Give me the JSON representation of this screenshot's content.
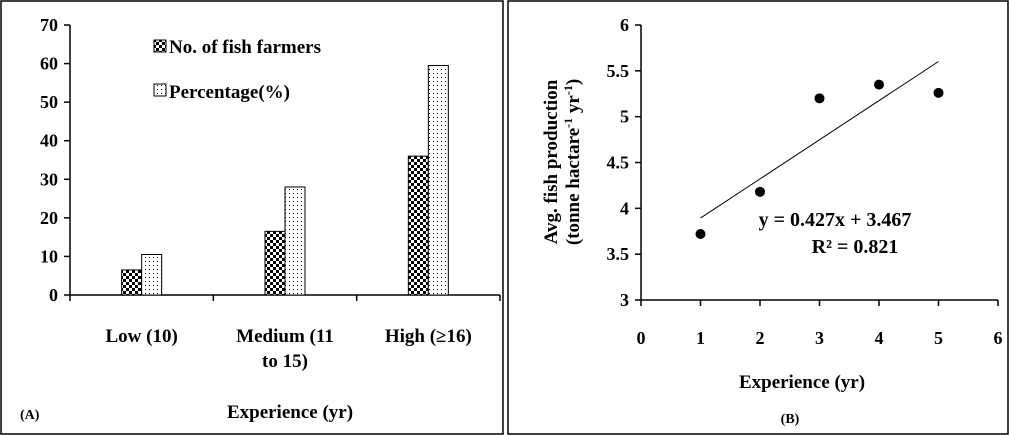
{
  "chart_data": [
    {
      "panel_label": "(A)",
      "type": "bar",
      "categories": [
        "Low (10)",
        "Medium (11 to 15)",
        "High (≥16)"
      ],
      "category_lines": [
        [
          "Low (10)"
        ],
        [
          "Medium (11",
          "to 15)"
        ],
        [
          "High (≥16)"
        ]
      ],
      "series": [
        {
          "name": "No. of fish farmers",
          "values": [
            6.5,
            16.5,
            36
          ]
        },
        {
          "name": "Percentage(%)",
          "values": [
            10.5,
            28,
            59.5
          ]
        }
      ],
      "xlabel": "Experience (yr)",
      "ylabel": "",
      "ylim": [
        0,
        70
      ],
      "yticks": [
        0,
        10,
        20,
        30,
        40,
        50,
        60,
        70
      ],
      "grid": false,
      "legend": "top-center"
    },
    {
      "panel_label": "(B)",
      "type": "scatter",
      "x": [
        1,
        2,
        3,
        4,
        5
      ],
      "y": [
        3.72,
        4.18,
        5.2,
        5.35,
        5.26
      ],
      "trendline": {
        "slope": 0.427,
        "intercept": 3.467,
        "x_range": [
          1,
          5
        ]
      },
      "equation": "y = 0.427x + 3.467",
      "r_squared": "R² = 0.821",
      "xlabel": "Experience (yr)",
      "ylabel_line1": "Avg. fish production",
      "ylabel_line2_parts": [
        "(tonne hactare",
        "-1",
        " yr",
        "-1",
        ")"
      ],
      "xlim": [
        0,
        6
      ],
      "ylim": [
        3,
        6
      ],
      "xticks": [
        0,
        1,
        2,
        3,
        4,
        5,
        6
      ],
      "xtick_labels": [
        "0",
        "1",
        "2",
        "3",
        "4",
        "5",
        "6"
      ],
      "yticks": [
        3,
        3.5,
        4,
        4.5,
        5,
        5.5,
        6
      ],
      "ytick_labels": [
        "3",
        "3.5",
        "4",
        "4.5",
        "5",
        "5.5",
        "6"
      ],
      "grid": false
    }
  ]
}
